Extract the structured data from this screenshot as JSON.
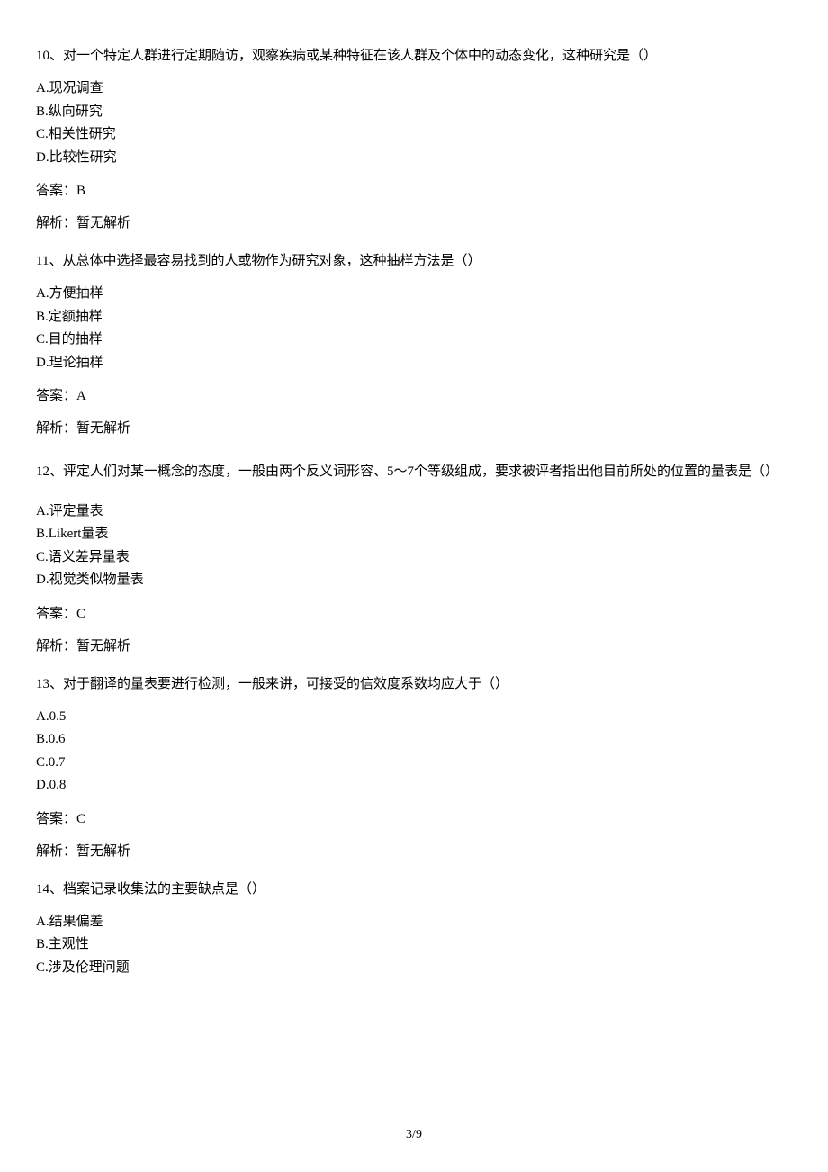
{
  "questions": [
    {
      "number": "10",
      "text": "10、对一个特定人群进行定期随访，观察疾病或某种特征在该人群及个体中的动态变化，这种研究是（）",
      "options": {
        "a": "A.现况调查",
        "b": "B.纵向研究",
        "c": "C.相关性研究",
        "d": "D.比较性研究"
      },
      "answer": "答案：B",
      "analysis": "解析：暂无解析"
    },
    {
      "number": "11",
      "text": "11、从总体中选择最容易找到的人或物作为研究对象，这种抽样方法是（）",
      "options": {
        "a": "A.方便抽样",
        "b": "B.定额抽样",
        "c": "C.目的抽样",
        "d": "D.理论抽样"
      },
      "answer": "答案：A",
      "analysis": "解析：暂无解析"
    },
    {
      "number": "12",
      "text": "12、评定人们对某一概念的态度，一般由两个反义词形容、5～7个等级组成，要求被评者指出他目前所处的位置的量表是（）",
      "options": {
        "a": "A.评定量表",
        "b": "B.Likert量表",
        "c": "C.语义差异量表",
        "d": "D.视觉类似物量表"
      },
      "answer": "答案：C",
      "analysis": "解析：暂无解析"
    },
    {
      "number": "13",
      "text": "13、对于翻译的量表要进行检测，一般来讲，可接受的信效度系数均应大于（）",
      "options": {
        "a": "A.0.5",
        "b": "B.0.6",
        "c": "C.0.7",
        "d": "D.0.8"
      },
      "answer": "答案：C",
      "analysis": "解析：暂无解析"
    },
    {
      "number": "14",
      "text": "14、档案记录收集法的主要缺点是（）",
      "options": {
        "a": "A.结果偏差",
        "b": "B.主观性",
        "c": "C.涉及伦理问题"
      },
      "answer": "",
      "analysis": ""
    }
  ],
  "page_number": "3/9"
}
